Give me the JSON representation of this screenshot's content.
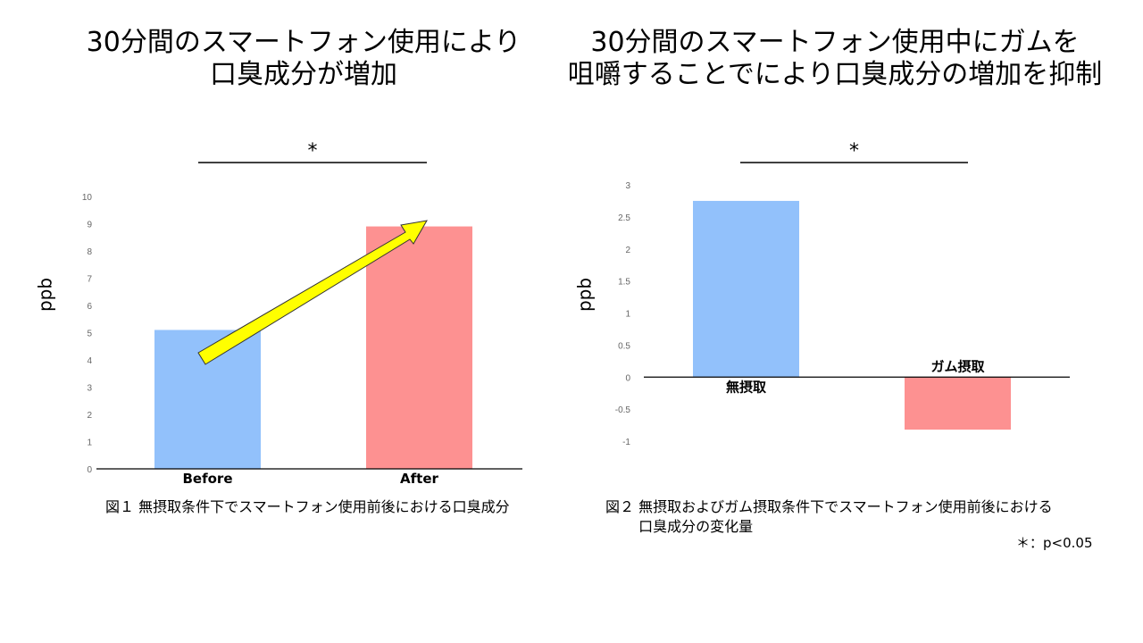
{
  "chart_data": [
    {
      "type": "bar",
      "title": "30分間のスマートフォン使用により\n口臭成分が増加",
      "caption": "図１ 無摂取条件下でスマートフォン使用前後における口臭成分",
      "ylabel": "ppb",
      "xlabel": "",
      "categories": [
        "Before",
        "After"
      ],
      "values": [
        5.1,
        8.9
      ],
      "colors": [
        "#92c1fb",
        "#fd9191"
      ],
      "ylim": [
        0,
        10
      ],
      "yticks": [
        0,
        1,
        2,
        3,
        4,
        5,
        6,
        7,
        8,
        9,
        10
      ],
      "grid": false,
      "significance": "*",
      "annotation": "yellow arrow from Before to After",
      "arrow_color": "#ffff00"
    },
    {
      "type": "bar",
      "title": "30分間のスマートフォン使用中にガムを\n咀嚼することでにより口臭成分の増加を抑制",
      "caption": "図２ 無摂取およびガム摂取条件下でスマートフォン使用前後における\n　　 口臭成分の変化量",
      "ylabel": "ppb",
      "xlabel": "",
      "categories": [
        "無摂取",
        "ガム摂取"
      ],
      "values": [
        2.75,
        -0.82
      ],
      "colors": [
        "#92c1fb",
        "#fd9191"
      ],
      "ylim": [
        -1,
        3
      ],
      "yticks": [
        -1,
        -0.5,
        0,
        0.5,
        1,
        1.5,
        2,
        2.5,
        3
      ],
      "grid": false,
      "significance": "*"
    }
  ],
  "footnote": "＊：p<0.05"
}
